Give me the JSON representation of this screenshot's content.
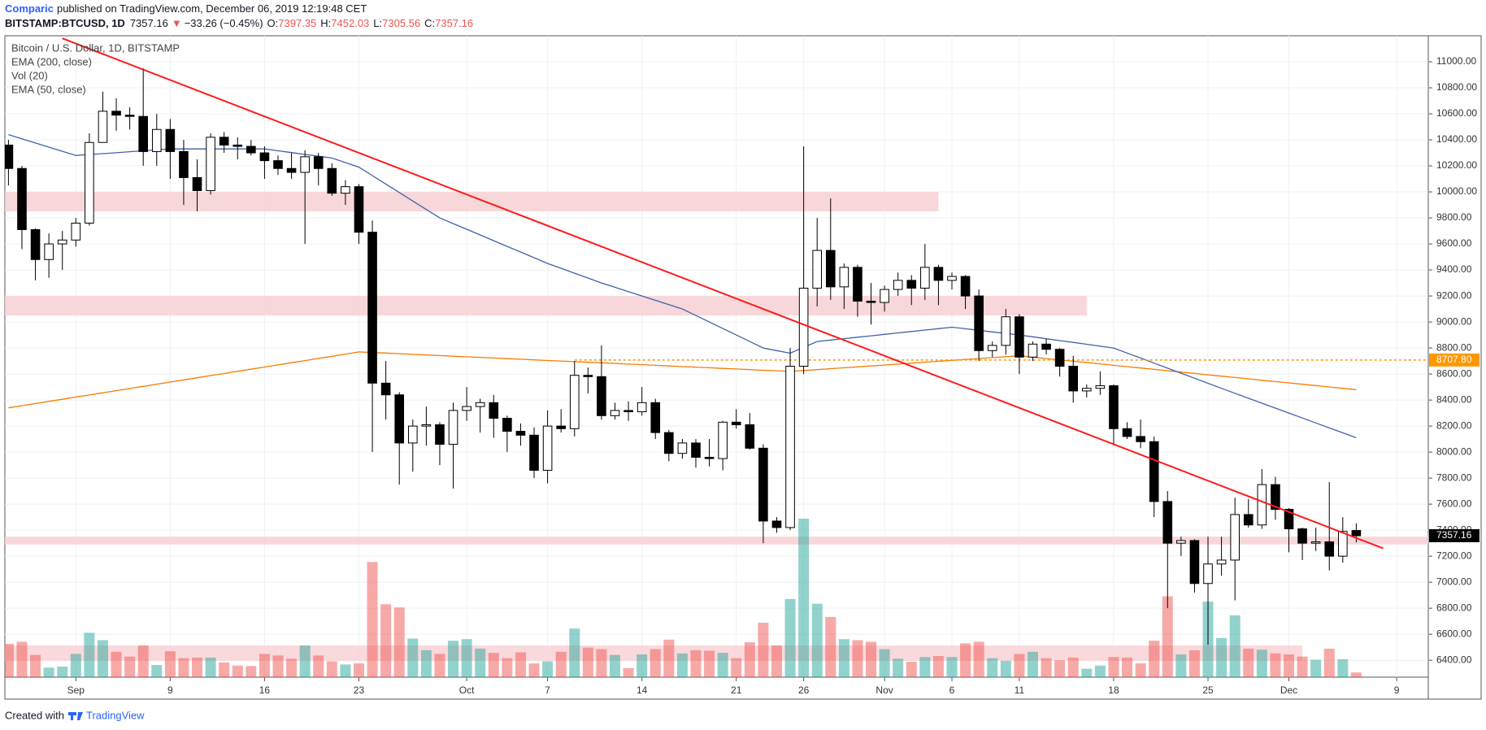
{
  "header": {
    "author": "Comparic",
    "published": "published on TradingView.com, December 06, 2019 12:19:48 CET",
    "symbol": "BITSTAMP:BTCUSD, 1D",
    "arrow": "▼",
    "change": "−33.26 (−0.45%)",
    "o": "O:",
    "h": "H:",
    "l": "L:",
    "c": "C:"
  },
  "footer": {
    "created": "Created with",
    "brand": "TradingView"
  },
  "chart_data": {
    "type": "candlestick",
    "title": "Bitcoin / U.S. Dollar, 1D, BITSTAMP",
    "volume_name": "Vol (20)",
    "grid": true,
    "up_color": "#26a69a",
    "down_color": "#ef5350",
    "candle_up": "#ffffff",
    "candle_down": "#000000",
    "ylim": [
      6270,
      11200
    ],
    "yticks": [
      {
        "value": 6400,
        "label": "6400.00"
      },
      {
        "value": 6600,
        "label": "6600.00"
      },
      {
        "value": 6800,
        "label": "6800.00"
      },
      {
        "value": 7000,
        "label": "7000.00"
      },
      {
        "value": 7200,
        "label": "7200.00"
      },
      {
        "value": 7400,
        "label": "7400.00"
      },
      {
        "value": 7600,
        "label": "7600.00"
      },
      {
        "value": 7800,
        "label": "7800.00"
      },
      {
        "value": 8000,
        "label": "8000.00"
      },
      {
        "value": 8200,
        "label": "8200.00"
      },
      {
        "value": 8400,
        "label": "8400.00"
      },
      {
        "value": 8600,
        "label": "8600.00"
      },
      {
        "value": 8800,
        "label": "8800.00"
      },
      {
        "value": 9000,
        "label": "9000.00"
      },
      {
        "value": 9200,
        "label": "9200.00"
      },
      {
        "value": 9400,
        "label": "9400.00"
      },
      {
        "value": 9600,
        "label": "9600.00"
      },
      {
        "value": 9800,
        "label": "9800.00"
      },
      {
        "value": 10000,
        "label": "10000.00"
      },
      {
        "value": 10200,
        "label": "10200.00"
      },
      {
        "value": 10400,
        "label": "10400.00"
      },
      {
        "value": 10600,
        "label": "10600.00"
      },
      {
        "value": 10800,
        "label": "10800.00"
      },
      {
        "value": 11000,
        "label": "11000.00"
      }
    ],
    "categories": [
      null,
      null,
      null,
      null,
      null,
      "Sep",
      null,
      null,
      null,
      null,
      null,
      null,
      "9",
      null,
      null,
      null,
      null,
      null,
      null,
      "16",
      null,
      null,
      null,
      null,
      null,
      null,
      "23",
      null,
      null,
      null,
      null,
      null,
      null,
      null,
      "Oct",
      null,
      null,
      null,
      null,
      null,
      "7",
      null,
      null,
      null,
      null,
      null,
      null,
      "14",
      null,
      null,
      null,
      null,
      null,
      null,
      "21",
      null,
      null,
      null,
      null,
      "26",
      null,
      null,
      null,
      null,
      null,
      "Nov",
      null,
      null,
      null,
      null,
      "6",
      null,
      null,
      null,
      null,
      "11",
      null,
      null,
      null,
      null,
      null,
      null,
      "18",
      null,
      null,
      null,
      null,
      null,
      null,
      "25",
      null,
      null,
      null,
      null,
      null,
      "Dec",
      null,
      null,
      null,
      null,
      null,
      null,
      null,
      "9",
      null
    ],
    "open": [
      10360,
      10180,
      9710,
      9480,
      9600,
      9630,
      9760,
      10380,
      10620,
      10590,
      10580,
      10310,
      10480,
      10310,
      10110,
      10010,
      10420,
      10360,
      10350,
      10300,
      10240,
      10180,
      10150,
      10270,
      10180,
      9990,
      10040,
      9690,
      8530,
      8440,
      8070,
      8200,
      8210,
      8060,
      8320,
      8350,
      8380,
      8260,
      8160,
      8130,
      7860,
      8200,
      8180,
      8590,
      8580,
      8280,
      8320,
      8310,
      8380,
      8150,
      7990,
      8070,
      7960,
      7950,
      8230,
      8210,
      8030,
      7470,
      7420,
      8660,
      9260,
      9550,
      9270,
      9420,
      9160,
      9150,
      9250,
      9320,
      9260,
      9420,
      9320,
      9350,
      9200,
      8780,
      8820,
      9040,
      8730,
      8830,
      8790,
      8660,
      8470,
      8490,
      8510,
      8180,
      8120,
      8080,
      7620,
      7300,
      7320,
      6990,
      7140,
      7170,
      7520,
      7440,
      7750,
      7560,
      7410,
      7300,
      7310,
      7200,
      7397.35,
      null,
      null,
      null,
      null
    ],
    "high": [
      10400,
      10200,
      9720,
      9680,
      9700,
      9800,
      10450,
      10770,
      10720,
      10650,
      10950,
      10600,
      10560,
      10400,
      10250,
      10450,
      10460,
      10420,
      10400,
      10350,
      10280,
      10300,
      10320,
      10300,
      10220,
      10090,
      10060,
      9780,
      8700,
      8460,
      8250,
      8350,
      8230,
      8380,
      8500,
      8410,
      8440,
      8280,
      8220,
      8190,
      8320,
      8330,
      8700,
      8650,
      8820,
      8380,
      8390,
      8500,
      8410,
      8170,
      8100,
      8100,
      8100,
      8240,
      8330,
      8300,
      8060,
      7500,
      8800,
      10350,
      9800,
      9950,
      9450,
      9440,
      9300,
      9280,
      9380,
      9360,
      9600,
      9440,
      9380,
      9360,
      9250,
      8850,
      9100,
      9060,
      8850,
      8870,
      8800,
      8740,
      8520,
      8620,
      8520,
      8230,
      8250,
      8120,
      7700,
      7350,
      7330,
      7350,
      7350,
      7650,
      7640,
      7870,
      7810,
      7570,
      7420,
      7420,
      7770,
      7500,
      7452.03,
      null,
      null,
      null,
      null
    ],
    "low": [
      10050,
      9560,
      9320,
      9340,
      9400,
      9580,
      9740,
      10380,
      10470,
      10480,
      10200,
      10200,
      10100,
      9900,
      9850,
      9980,
      10300,
      10250,
      10280,
      10100,
      10130,
      10100,
      9600,
      10050,
      9970,
      9900,
      9600,
      8000,
      8250,
      7750,
      7850,
      8050,
      7900,
      7720,
      8240,
      8150,
      8110,
      8000,
      8050,
      7800,
      7760,
      8150,
      8120,
      8450,
      8250,
      8250,
      8240,
      8280,
      8100,
      7930,
      7950,
      7880,
      7890,
      7860,
      8180,
      8020,
      7300,
      7380,
      7400,
      8600,
      9120,
      9170,
      9100,
      9040,
      8980,
      9080,
      9200,
      9130,
      9170,
      9130,
      9250,
      9100,
      8700,
      8730,
      8750,
      8600,
      8700,
      8750,
      8580,
      8380,
      8420,
      8440,
      8050,
      8100,
      8030,
      7500,
      6800,
      7200,
      6920,
      6520,
      7050,
      6860,
      7420,
      7410,
      7480,
      7230,
      7170,
      7240,
      7090,
      7150,
      7305.56,
      null,
      null,
      null,
      null
    ],
    "close": [
      10180,
      9710,
      9480,
      9600,
      9630,
      9760,
      10380,
      10620,
      10590,
      10580,
      10310,
      10480,
      10310,
      10110,
      10010,
      10420,
      10360,
      10350,
      10300,
      10240,
      10180,
      10150,
      10270,
      10180,
      9990,
      10040,
      9690,
      8530,
      8440,
      8070,
      8200,
      8210,
      8060,
      8320,
      8350,
      8380,
      8260,
      8160,
      8130,
      7860,
      8200,
      8180,
      8590,
      8580,
      8280,
      8320,
      8310,
      8380,
      8150,
      7990,
      8070,
      7960,
      7950,
      8230,
      8210,
      8030,
      7470,
      7420,
      8660,
      9260,
      9550,
      9270,
      9420,
      9160,
      9150,
      9250,
      9320,
      9260,
      9420,
      9320,
      9350,
      9200,
      8780,
      8820,
      9040,
      8730,
      8830,
      8790,
      8660,
      8470,
      8490,
      8510,
      8180,
      8120,
      8080,
      7620,
      7300,
      7320,
      6990,
      7140,
      7170,
      7520,
      7440,
      7750,
      7560,
      7410,
      7300,
      7310,
      7200,
      7390.42,
      7357.16,
      null,
      null,
      null,
      null
    ],
    "volume": [
      6300,
      6700,
      4200,
      1800,
      2000,
      4400,
      8400,
      7000,
      4800,
      3900,
      6000,
      2300,
      4900,
      3600,
      3700,
      3700,
      2800,
      2200,
      2100,
      4400,
      4100,
      3500,
      6000,
      4100,
      3000,
      2400,
      2600,
      21800,
      13800,
      13200,
      7300,
      5100,
      4400,
      6900,
      7200,
      5400,
      4600,
      3600,
      4700,
      2600,
      3000,
      4800,
      9200,
      5600,
      5300,
      4200,
      1700,
      4300,
      5300,
      7100,
      4500,
      5100,
      5000,
      4600,
      3600,
      6600,
      10300,
      6000,
      14800,
      30000,
      13900,
      11400,
      7200,
      7000,
      6700,
      5300,
      3500,
      2900,
      3800,
      4000,
      3800,
      6400,
      6700,
      3600,
      3100,
      4400,
      4800,
      3600,
      3200,
      3700,
      1600,
      2200,
      3800,
      3700,
      2600,
      6900,
      15300,
      4300,
      5100,
      14300,
      7400,
      11700,
      5400,
      5200,
      4500,
      4300,
      3900,
      3300,
      5400,
      3400,
      900,
      null,
      null,
      null,
      null
    ],
    "series": [
      {
        "name": "EMA (200, close)",
        "color": "#f57c00",
        "values": [
          8340,
          8357,
          8373,
          8390,
          8406,
          8423,
          8439,
          8456,
          8472,
          8489,
          8505,
          8522,
          8538,
          8555,
          8571,
          8588,
          8604,
          8621,
          8637,
          8654,
          8670,
          8687,
          8703,
          8720,
          8736,
          8753,
          8770,
          8765,
          8761,
          8756,
          8751,
          8746,
          8742,
          8737,
          8732,
          8728,
          8723,
          8718,
          8714,
          8709,
          8704,
          8700,
          8695,
          8690,
          8686,
          8681,
          8676,
          8672,
          8667,
          8662,
          8657,
          8653,
          8648,
          8643,
          8639,
          8634,
          8629,
          8625,
          8620,
          8627,
          8634,
          8641,
          8648,
          8655,
          8662,
          8669,
          8676,
          8684,
          8691,
          8698,
          8705,
          8712,
          8719,
          8726,
          8733,
          8740,
          8730,
          8719,
          8709,
          8698,
          8688,
          8678,
          8667,
          8657,
          8646,
          8636,
          8625,
          8615,
          8605,
          8594,
          8584,
          8573,
          8563,
          8552,
          8542,
          8532,
          8521,
          8511,
          8500,
          8490,
          8480,
          null,
          null,
          null,
          null
        ]
      },
      {
        "name": "EMA (50, close)",
        "color": "#3f63a8",
        "values": [
          10440,
          10408,
          10376,
          10344,
          10312,
          10280,
          10287,
          10294,
          10301,
          10309,
          10316,
          10323,
          10330,
          10330,
          10330,
          10330,
          10330,
          10330,
          10330,
          10330,
          10316,
          10302,
          10288,
          10274,
          10260,
          10225,
          10190,
          10125,
          10060,
          9995,
          9930,
          9865,
          9800,
          9756,
          9713,
          9669,
          9625,
          9581,
          9538,
          9494,
          9450,
          9413,
          9375,
          9338,
          9300,
          9267,
          9233,
          9200,
          9167,
          9133,
          9100,
          9050,
          9000,
          8950,
          8900,
          8850,
          8800,
          8780,
          8760,
          8805,
          8850,
          8861,
          8872,
          8883,
          8894,
          8905,
          8916,
          8927,
          8938,
          8949,
          8960,
          8948,
          8936,
          8924,
          8912,
          8900,
          8886,
          8871,
          8857,
          8843,
          8829,
          8814,
          8800,
          8761,
          8723,
          8684,
          8645,
          8606,
          8568,
          8529,
          8490,
          8452,
          8414,
          8376,
          8338,
          8300,
          8262,
          8224,
          8186,
          8148,
          8110,
          null,
          null,
          null,
          null
        ]
      }
    ],
    "zones": [
      {
        "from": 9850,
        "to": 10000,
        "end_index": 69
      },
      {
        "from": 9050,
        "to": 9200,
        "end_index": 80
      },
      {
        "from": 7290,
        "to": 7350,
        "end_index": 106
      }
    ],
    "zone_color": "#f7d0d3",
    "level": {
      "value": 8707.8,
      "label": "8707.80",
      "from_index": 42,
      "color": "#ff9800"
    },
    "trendline": {
      "from_index": 4,
      "from": 11180,
      "to_index": 102,
      "to": 7260,
      "color": "#ff1a1a"
    }
  }
}
